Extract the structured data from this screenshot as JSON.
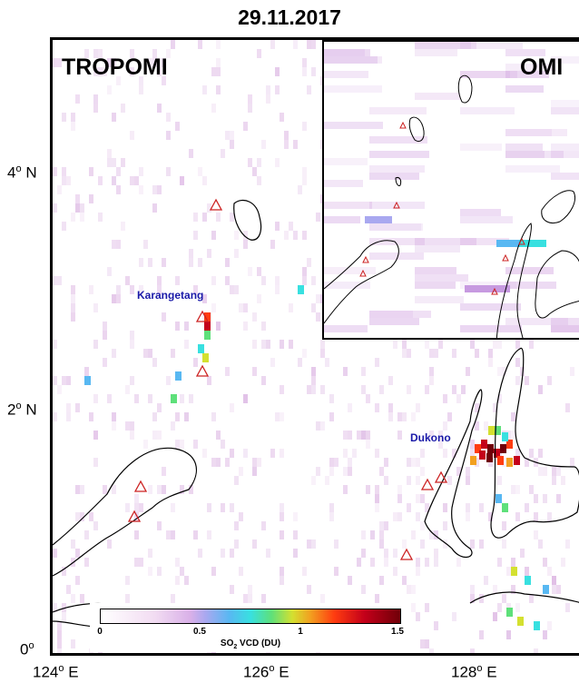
{
  "title": "29.11.2017",
  "map": {
    "label_main": "TROPOMI",
    "label_inset": "OMI",
    "lat_ticks": [
      {
        "value": "4",
        "suffix": "N"
      },
      {
        "value": "2",
        "suffix": "N"
      },
      {
        "value": "0",
        "suffix": ""
      }
    ],
    "lon_ticks": [
      {
        "value": "124",
        "suffix": "E"
      },
      {
        "value": "126",
        "suffix": "E"
      },
      {
        "value": "128",
        "suffix": "E"
      }
    ],
    "volcanoes": [
      {
        "name": "Karangetang"
      },
      {
        "name": "Dukono"
      }
    ],
    "colors": {
      "coastline": "#000000",
      "volcano_marker": "#cc2222",
      "volcano_label": "#1a1aa8"
    }
  },
  "colorbar": {
    "label_main": "SO",
    "label_sub": "2",
    "label_rest": " VCD (DU)",
    "ticks": [
      "0",
      "0.5",
      "1",
      "1.5"
    ],
    "range": [
      0,
      1.5
    ]
  }
}
